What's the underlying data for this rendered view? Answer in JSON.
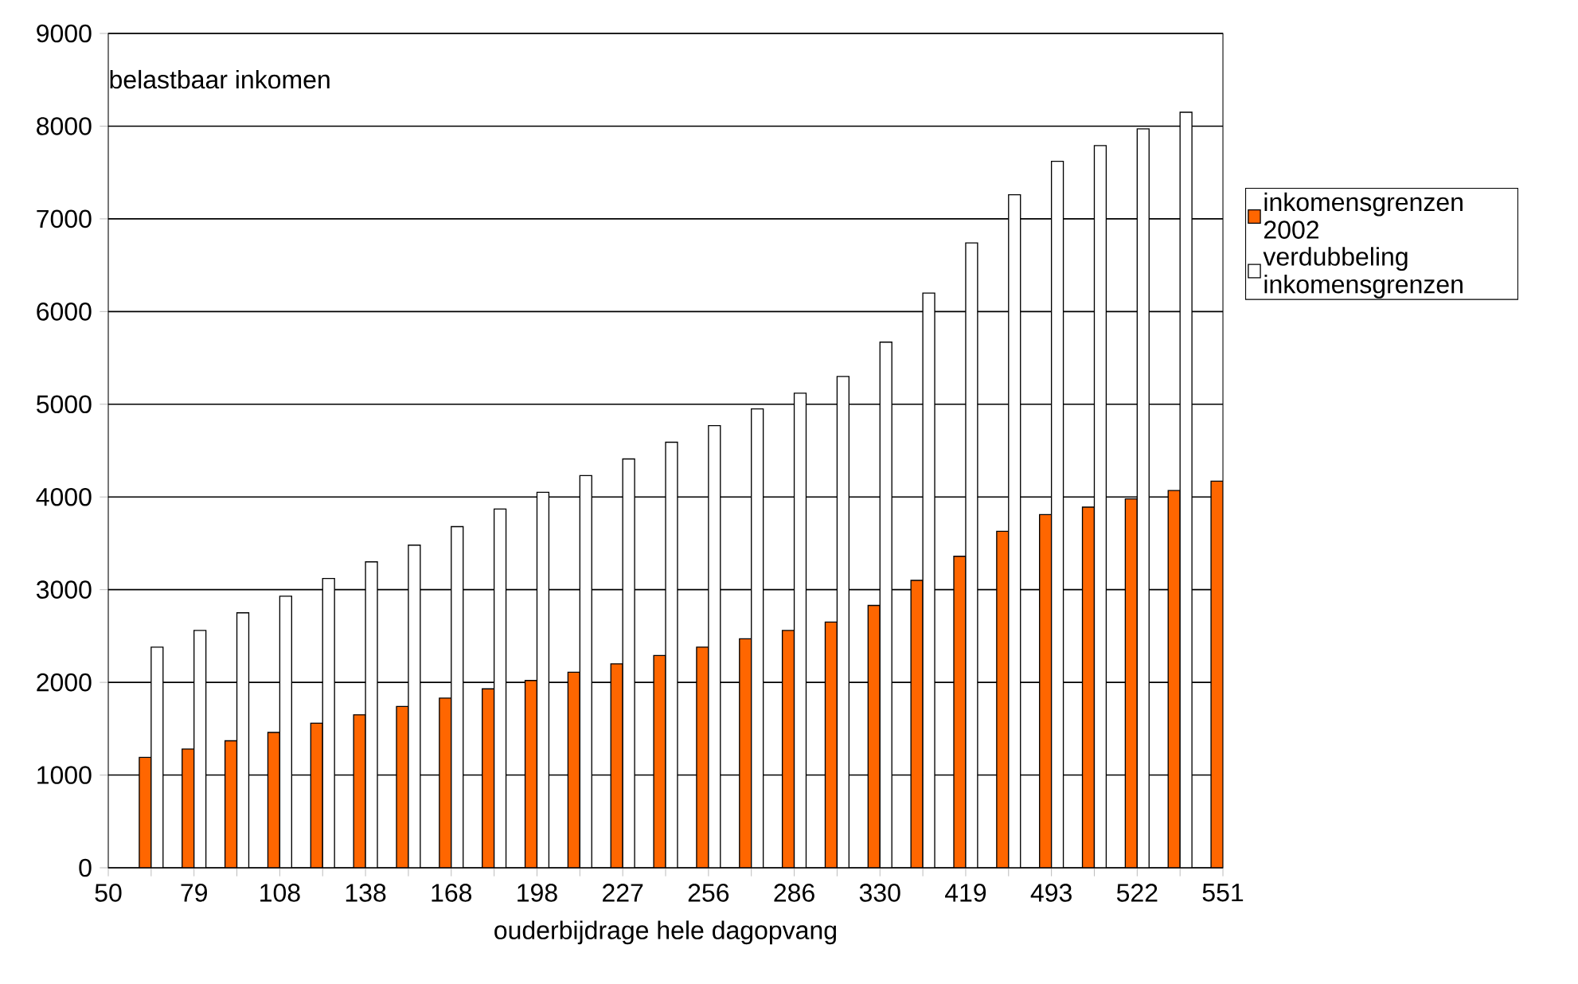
{
  "chart_data": {
    "type": "bar",
    "xlabel": "ouderbijdrage hele dagopvang",
    "ylabel": "belastbaar inkomen",
    "categories": [
      "50",
      null,
      "79",
      null,
      "108",
      null,
      "138",
      null,
      "168",
      null,
      "198",
      null,
      "227",
      null,
      "256",
      null,
      "286",
      null,
      "330",
      null,
      "419",
      null,
      "493",
      null,
      "522",
      null,
      "551"
    ],
    "series": [
      {
        "name": "inkomensgrenzen 2002",
        "color": "#ff6600",
        "values": [
          null,
          1190,
          1280,
          1370,
          1460,
          1560,
          1650,
          1740,
          1830,
          1930,
          2020,
          2110,
          2200,
          2290,
          2380,
          2470,
          2560,
          2650,
          2830,
          3100,
          3360,
          3630,
          3810,
          3890,
          3980,
          4070,
          4170
        ]
      },
      {
        "name": "verdubbeling inkomensgrenzen",
        "color": "#ffffff",
        "values": [
          null,
          2380,
          2560,
          2750,
          2930,
          3120,
          3300,
          3480,
          3680,
          3870,
          4050,
          4230,
          4410,
          4590,
          4770,
          4950,
          5120,
          5300,
          5670,
          6200,
          6740,
          7260,
          7620,
          7790,
          7970,
          8150,
          null
        ]
      }
    ],
    "ylim": [
      0,
      9000
    ],
    "yticks": [
      0,
      1000,
      2000,
      3000,
      4000,
      5000,
      6000,
      7000,
      8000,
      9000
    ],
    "grid": "y",
    "legend": "right"
  }
}
